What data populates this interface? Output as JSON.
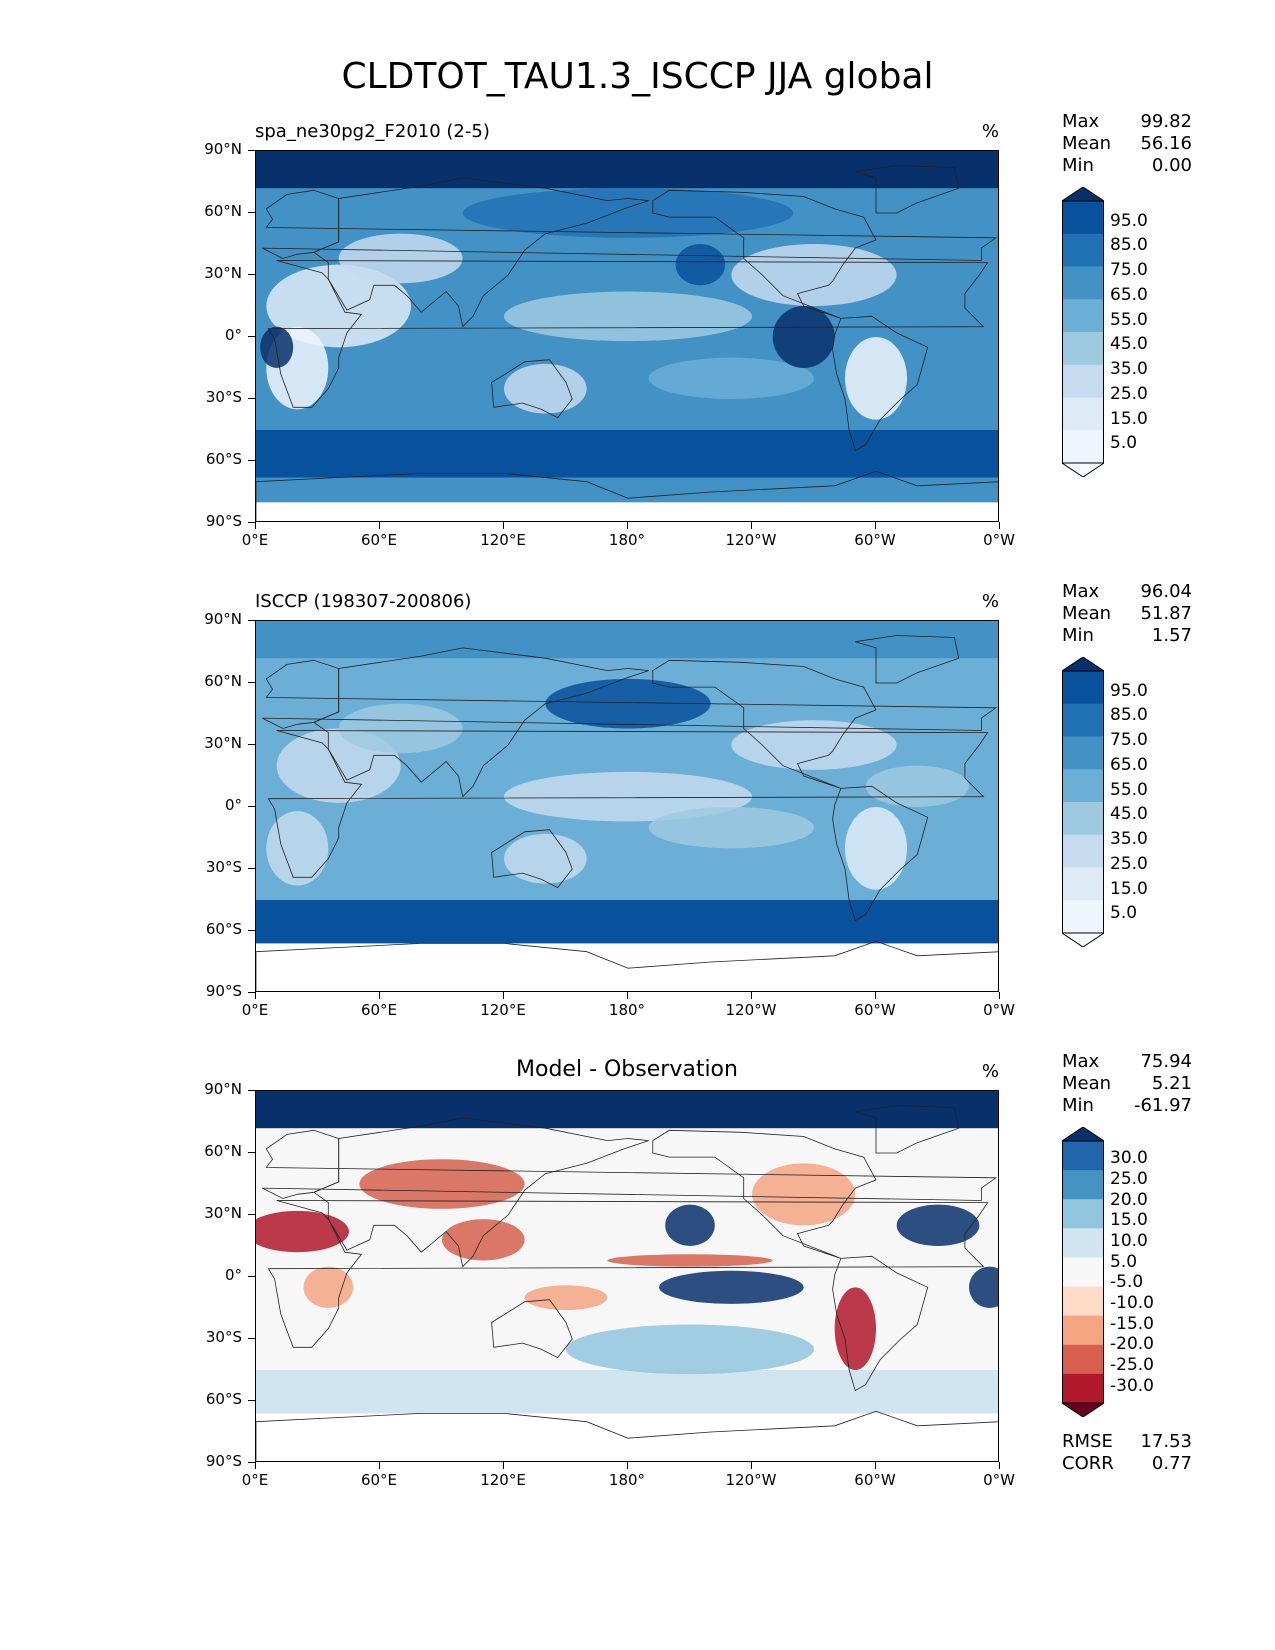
{
  "figure_title": "CLDTOT_TAU1.3_ISCCP JJA global",
  "chart_data": [
    {
      "type": "heatmap",
      "title": "spa_ne30pg2_F2010 (2-5)",
      "units": "%",
      "stats": {
        "Max": "99.82",
        "Mean": "56.16",
        "Min": "0.00"
      },
      "colorbar": {
        "ticks": [
          "95.0",
          "85.0",
          "75.0",
          "65.0",
          "55.0",
          "45.0",
          "35.0",
          "25.0",
          "15.0",
          "5.0"
        ],
        "colors": [
          "#08306b",
          "#08519c",
          "#2171b5",
          "#4292c6",
          "#6baed6",
          "#9ecae1",
          "#c6dbef",
          "#deebf7",
          "#eef5fc",
          "#f7fbff"
        ],
        "extend": "both"
      },
      "xticks": [
        "0°E",
        "60°E",
        "120°E",
        "180°",
        "120°W",
        "60°W",
        "0°W"
      ],
      "yticks": [
        "90°N",
        "60°N",
        "30°N",
        "0°",
        "30°S",
        "60°S",
        "90°S"
      ],
      "xlim": [
        0,
        360
      ],
      "ylim": [
        -90,
        90
      ]
    },
    {
      "type": "heatmap",
      "title": "ISCCP (198307-200806)",
      "units": "%",
      "stats": {
        "Max": "96.04",
        "Mean": "51.87",
        "Min": "1.57"
      },
      "colorbar": {
        "ticks": [
          "95.0",
          "85.0",
          "75.0",
          "65.0",
          "55.0",
          "45.0",
          "35.0",
          "25.0",
          "15.0",
          "5.0"
        ],
        "colors": [
          "#08306b",
          "#08519c",
          "#2171b5",
          "#4292c6",
          "#6baed6",
          "#9ecae1",
          "#c6dbef",
          "#deebf7",
          "#eef5fc",
          "#f7fbff"
        ],
        "extend": "both"
      },
      "xticks": [
        "0°E",
        "60°E",
        "120°E",
        "180°",
        "120°W",
        "60°W",
        "0°W"
      ],
      "yticks": [
        "90°N",
        "60°N",
        "30°N",
        "0°",
        "30°S",
        "60°S",
        "90°S"
      ],
      "xlim": [
        0,
        360
      ],
      "ylim": [
        -90,
        90
      ]
    },
    {
      "type": "heatmap",
      "title": "Model - Observation",
      "units": "%",
      "stats": {
        "Max": "75.94",
        "Mean": "5.21",
        "Min": "-61.97"
      },
      "colorbar": {
        "ticks": [
          "30.0",
          "25.0",
          "20.0",
          "15.0",
          "10.0",
          "5.0",
          "-5.0",
          "-10.0",
          "-15.0",
          "-20.0",
          "-25.0",
          "-30.0"
        ],
        "colors": [
          "#08306b",
          "#2166ac",
          "#4393c3",
          "#92c5de",
          "#d1e5f0",
          "#f7f7f7",
          "#fddbc7",
          "#f4a582",
          "#d6604d",
          "#b2182b",
          "#67001f"
        ],
        "extend": "both"
      },
      "metrics": {
        "RMSE": "17.53",
        "CORR": "0.77"
      },
      "xticks": [
        "0°E",
        "60°E",
        "120°E",
        "180°",
        "120°W",
        "60°W",
        "0°W"
      ],
      "yticks": [
        "90°N",
        "60°N",
        "30°N",
        "0°",
        "30°S",
        "60°S",
        "90°S"
      ],
      "xlim": [
        0,
        360
      ],
      "ylim": [
        -90,
        90
      ]
    }
  ]
}
